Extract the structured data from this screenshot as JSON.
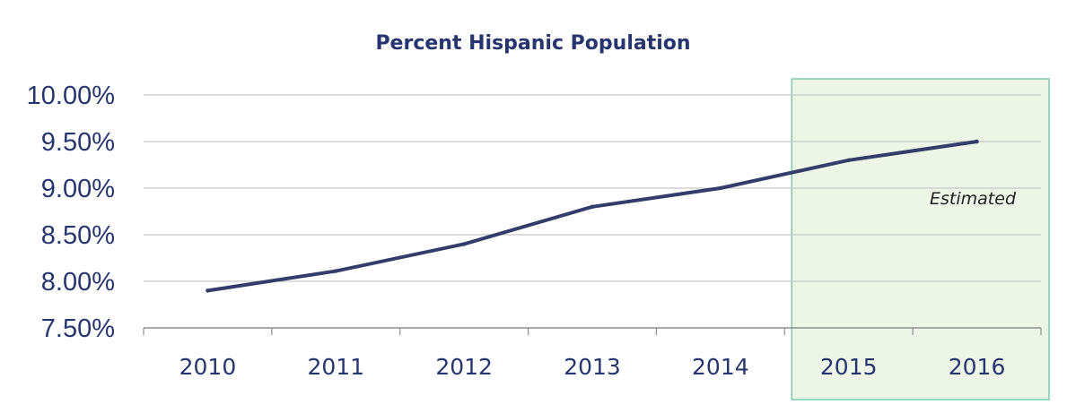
{
  "chart_data": {
    "type": "line",
    "title": "Percent Hispanic Population",
    "xlabel": "",
    "ylabel": "",
    "categories": [
      "2010",
      "2011",
      "2012",
      "2013",
      "2014",
      "2015",
      "2016"
    ],
    "series": [
      {
        "values": [
          7.9,
          8.11,
          8.4,
          8.8,
          9.0,
          9.3,
          9.5
        ]
      }
    ],
    "ylim": [
      7.5,
      10.0
    ],
    "y_ticks": [
      7.5,
      8.0,
      8.5,
      9.0,
      9.5,
      10.0
    ],
    "y_tick_labels": [
      "7.50%",
      "8.00%",
      "8.50%",
      "9.00%",
      "9.50%",
      "10.00%"
    ],
    "grid": true,
    "estimated_region": {
      "label": "Estimated",
      "from_category": "2015",
      "to_category": "2016"
    },
    "colors": {
      "line": "#343d69",
      "title": "#27356f",
      "tick_labels": "#27356f",
      "estimated_fill": "#edf5e7",
      "estimated_border": "#7ec8aa",
      "grid": "#c7c7c7"
    }
  }
}
